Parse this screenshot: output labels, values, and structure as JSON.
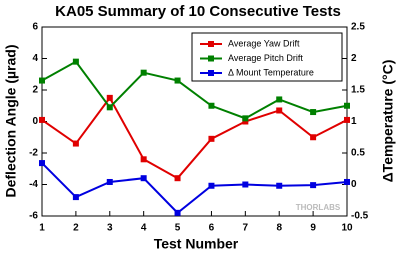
{
  "chart_data": {
    "type": "line",
    "title": "KA05 Summary of 10 Consecutive Tests",
    "x_label": "Test Number",
    "y_label": "Deflection Angle (µrad)",
    "y2_label": "ΔTemperature (°C)",
    "watermark": "THORLABS",
    "x": [
      1,
      2,
      3,
      4,
      5,
      6,
      7,
      8,
      9,
      10
    ],
    "xlim": [
      1,
      10
    ],
    "xticks": [
      1,
      2,
      3,
      4,
      5,
      6,
      7,
      8,
      9,
      10
    ],
    "ylim": [
      -6,
      6
    ],
    "yticks": [
      -6,
      -4,
      -2,
      0,
      2,
      4,
      6
    ],
    "y2lim": [
      -0.5,
      2.5
    ],
    "y2ticks": [
      -0.5,
      0,
      0.5,
      1,
      1.5,
      2,
      2.5
    ],
    "legend": "upper right",
    "series": [
      {
        "name": "Average Yaw Drift",
        "color": "#e00000",
        "values": [
          0.1,
          -1.4,
          1.5,
          -2.4,
          -3.6,
          -1.1,
          0.0,
          0.7,
          -1.0,
          0.1
        ]
      },
      {
        "name": "Average Pitch Drift",
        "color": "#008000",
        "values": [
          2.6,
          3.8,
          0.9,
          3.1,
          2.6,
          1.0,
          0.2,
          1.4,
          0.6,
          1.0
        ]
      },
      {
        "name": "Δ Mount Temperature",
        "color": "#0000e0",
        "axis": "y2",
        "values": [
          0.34,
          -0.2,
          0.04,
          0.1,
          -0.45,
          -0.02,
          0.0,
          -0.02,
          -0.01,
          0.04
        ]
      }
    ]
  }
}
